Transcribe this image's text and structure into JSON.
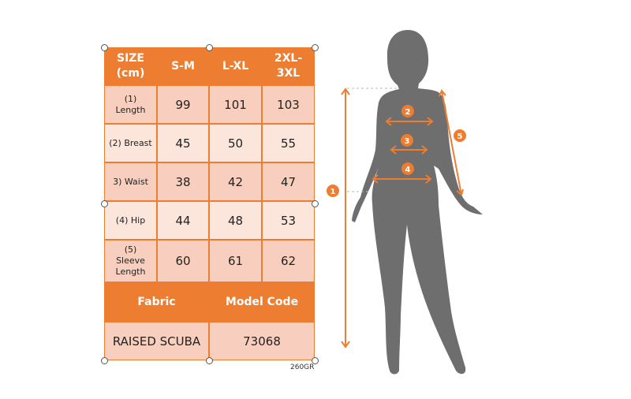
{
  "table": {
    "header": [
      "SIZE\n(cm)",
      "S-M",
      "L-XL",
      "2XL-\n3XL"
    ],
    "header_lines": [
      [
        "SIZE",
        "(cm)"
      ],
      [
        "S-M"
      ],
      [
        "L-XL"
      ],
      [
        "2XL-",
        "3XL"
      ]
    ],
    "rows": [
      {
        "label": [
          "(1)",
          "Length"
        ],
        "values": [
          "99",
          "101",
          "103"
        ]
      },
      {
        "label": [
          "(2) Breast"
        ],
        "values": [
          "45",
          "50",
          "55"
        ]
      },
      {
        "label": [
          "3) Waist"
        ],
        "values": [
          "38",
          "42",
          "47"
        ]
      },
      {
        "label": [
          "(4) Hip"
        ],
        "values": [
          "44",
          "48",
          "53"
        ]
      },
      {
        "label": [
          "(5)",
          "Sleeve",
          "Length"
        ],
        "values": [
          "60",
          "61",
          "62"
        ]
      }
    ],
    "fabric_header": "Fabric",
    "model_code_header": "Model Code",
    "fabric_value": "RAISED SCUBA",
    "model_code_value": "73068"
  },
  "weight_note": "260GR",
  "figure": {
    "markers": [
      "1",
      "2",
      "3",
      "4",
      "5"
    ]
  },
  "colors": {
    "accent": "#ED7D31",
    "row_dark": "#F8CFBE",
    "row_light": "#FCE5DA",
    "silhouette": "#6E6E6E"
  }
}
